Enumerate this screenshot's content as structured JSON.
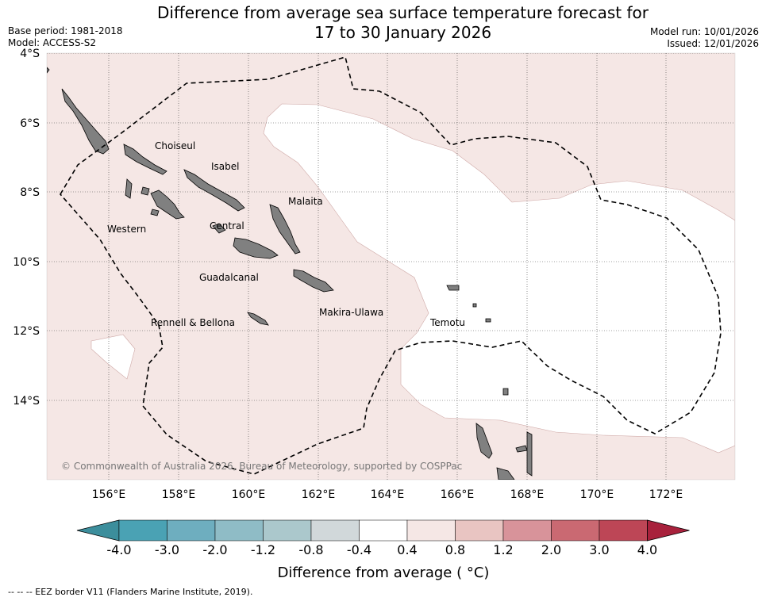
{
  "title": {
    "line1": "Difference from average sea surface temperature forecast for",
    "line2": "17 to 30 January 2026"
  },
  "meta_left": {
    "base_period": "Base period: 1981-2018",
    "model": "Model: ACCESS-S2"
  },
  "meta_right": {
    "model_run": "Model run: 10/01/2026",
    "issued": "Issued: 12/01/2026"
  },
  "map": {
    "lat_labels": [
      "4°S",
      "6°S",
      "8°S",
      "10°S",
      "12°S",
      "14°S"
    ],
    "lon_labels": [
      "156°E",
      "158°E",
      "160°E",
      "162°E",
      "164°E",
      "166°E",
      "168°E",
      "170°E",
      "172°E"
    ],
    "province_labels": [
      "Choiseul",
      "Isabel",
      "Malaita",
      "Western",
      "Central",
      "Guadalcanal",
      "Makira-Ulawa",
      "Rennell & Bellona",
      "Temotu"
    ],
    "copyright": "© Commonwealth of Australia 2026, Bureau of Meteorology, supported by COSPPac",
    "colors": {
      "warm_fill": "#f5e7e5",
      "neutral_fill": "#ffffff",
      "land": "#808080",
      "eez_border": "#000000"
    }
  },
  "colorbar": {
    "ticks": [
      "-4.0",
      "-3.0",
      "-2.0",
      "-1.2",
      "-0.8",
      "-0.4",
      "0.4",
      "0.8",
      "1.2",
      "2.0",
      "3.0",
      "4.0"
    ],
    "colors": [
      "#3c8e9c",
      "#4aa2b4",
      "#6eaebf",
      "#8fbcc6",
      "#abc8cc",
      "#d1d8da",
      "#ffffff",
      "#f5e7e5",
      "#e9c5c2",
      "#d8939a",
      "#ca6972",
      "#bd4656",
      "#a8213c"
    ],
    "label": "Difference from average ( °C)"
  },
  "footer": "--  --  -- EEZ border V11 (Flanders Marine Institute, 2019)."
}
